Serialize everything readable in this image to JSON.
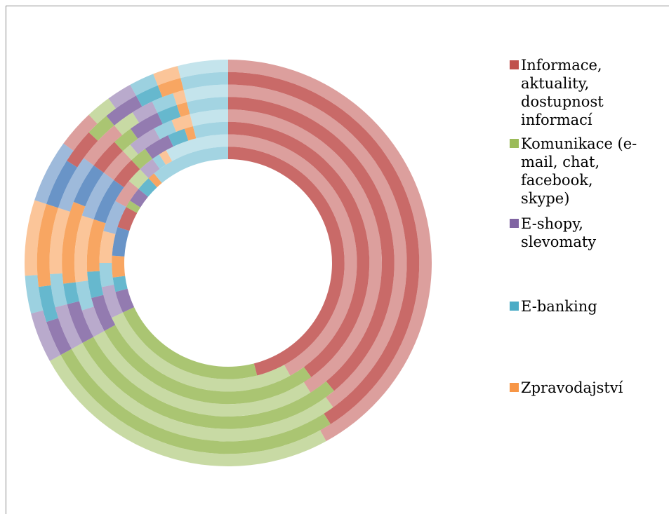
{
  "chart_data": {
    "type": "doughnut",
    "categories": [
      "Informace, aktuality, dostupnost informací",
      "Komunikace (e-mail, chat, facebook, skype)",
      "E-shopy, slevomaty",
      "E-banking",
      "Zpravodajství",
      null,
      null,
      null,
      null,
      null,
      null,
      null
    ],
    "colors": [
      "#c0504d",
      "#9bbb59",
      "#8064a2",
      "#4bacc6",
      "#f79646",
      "#4f81bd",
      "#c0504d",
      "#9bbb59",
      "#8064a2",
      "#4bacc6",
      "#f79646",
      "#93cddd"
    ],
    "legend": "right",
    "series": [
      {
        "values": [
          46,
          22,
          3,
          2,
          3,
          4,
          3,
          1,
          2,
          2,
          1,
          11
        ]
      },
      {
        "values": [
          42,
          26,
          4,
          3,
          4,
          4,
          3,
          2,
          2,
          1,
          1,
          8
        ]
      },
      {
        "values": [
          40,
          27,
          4,
          3,
          6,
          5,
          3,
          2,
          3,
          2,
          1,
          4
        ]
      },
      {
        "values": [
          41,
          26,
          3,
          3,
          7,
          5,
          3,
          1,
          3,
          2,
          2,
          4
        ]
      },
      {
        "values": [
          39,
          28,
          4,
          2,
          8,
          4,
          3,
          2,
          3,
          2,
          1,
          4
        ]
      },
      {
        "values": [
          40,
          27,
          4,
          3,
          6,
          5,
          4,
          2,
          2,
          2,
          1,
          4
        ]
      },
      {
        "values": [
          41,
          26,
          3,
          3,
          7,
          4,
          3,
          2,
          3,
          2,
          2,
          4
        ]
      },
      {
        "values": [
          42,
          25,
          4,
          3,
          6,
          5,
          3,
          2,
          2,
          2,
          2,
          4
        ]
      }
    ]
  }
}
